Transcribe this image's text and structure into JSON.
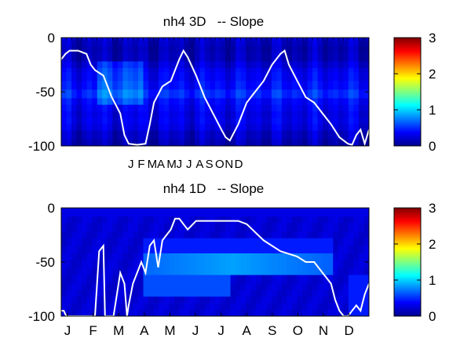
{
  "chart_data": [
    {
      "type": "heatmap",
      "title": "nh4 3D   -- Slope",
      "xlabel": "",
      "ylabel": "",
      "ylim": [
        -100,
        0
      ],
      "yticks": [
        0,
        -50,
        -100
      ],
      "xtick_labels": [
        "J",
        "F",
        "M",
        "A",
        "M",
        "J",
        "J",
        "A",
        "S",
        "O",
        "N",
        "D"
      ],
      "colorbar": {
        "min": 0,
        "max": 3,
        "ticks": [
          0,
          1,
          2,
          3
        ],
        "colormap": "jet"
      },
      "depth_bands": [
        0,
        -3,
        -8,
        -14,
        -22,
        -28,
        -32,
        -40,
        -48,
        -56,
        -62,
        -68,
        -74,
        -80,
        -86,
        -94,
        -100
      ],
      "band_values": [
        0.25,
        0.18,
        0.15,
        0.17,
        0.25,
        0.32,
        0.35,
        0.4,
        0.5,
        0.38,
        0.34,
        0.3,
        0.32,
        0.28,
        0.2,
        0.15
      ],
      "line_series": {
        "name": "",
        "color": "#ffffff",
        "x_day": [
          0,
          5,
          10,
          20,
          30,
          35,
          40,
          50,
          60,
          70,
          75,
          80,
          90,
          100,
          105,
          110,
          120,
          130,
          140,
          145,
          150,
          160,
          170,
          180,
          190,
          195,
          200,
          210,
          220,
          230,
          240,
          250,
          260,
          265,
          270,
          280,
          290,
          300,
          310,
          320,
          330,
          340,
          345,
          350,
          355,
          360,
          365
        ],
        "y_depth": [
          -20,
          -15,
          -12,
          -12,
          -15,
          -25,
          -30,
          -35,
          -55,
          -70,
          -90,
          -98,
          -99,
          -98,
          -80,
          -60,
          -45,
          -40,
          -20,
          -12,
          -18,
          -35,
          -55,
          -70,
          -85,
          -92,
          -95,
          -80,
          -60,
          -50,
          -40,
          -25,
          -15,
          -12,
          -25,
          -40,
          -55,
          -60,
          -70,
          -80,
          -92,
          -98,
          -99,
          -90,
          -85,
          -98,
          -85
        ]
      }
    },
    {
      "type": "heatmap",
      "title": "nh4 1D   -- Slope",
      "xlabel": "",
      "ylabel": "",
      "ylim": [
        -100,
        0
      ],
      "yticks": [
        0,
        -50,
        -100
      ],
      "xtick_labels": [
        "J",
        "F",
        "M",
        "A",
        "M",
        "J",
        "J",
        "A",
        "S",
        "O",
        "N",
        "D"
      ],
      "colorbar": {
        "min": 0,
        "max": 3,
        "ticks": [
          0,
          1,
          2,
          3
        ],
        "colormap": "jet"
      },
      "line_series": {
        "name": "",
        "color": "#ffffff",
        "x_day": [
          0,
          3,
          6,
          10,
          20,
          30,
          40,
          45,
          50,
          52,
          55,
          58,
          62,
          70,
          75,
          78,
          80,
          85,
          90,
          95,
          100,
          105,
          110,
          115,
          120,
          125,
          130,
          135,
          140,
          145,
          150,
          160,
          170,
          180,
          190,
          200,
          210,
          220,
          240,
          260,
          280,
          290,
          300,
          310,
          320,
          325,
          330,
          335,
          340,
          345,
          350,
          355,
          360,
          365
        ],
        "y_depth": [
          -95,
          -95,
          -100,
          -100,
          -100,
          -100,
          -100,
          -40,
          -35,
          -100,
          -100,
          -100,
          -100,
          -60,
          -70,
          -100,
          -90,
          -70,
          -60,
          -50,
          -60,
          -35,
          -30,
          -55,
          -30,
          -25,
          -20,
          -10,
          -10,
          -15,
          -20,
          -12,
          -12,
          -12,
          -12,
          -12,
          -12,
          -15,
          -30,
          -40,
          -45,
          -50,
          -50,
          -60,
          -70,
          -85,
          -95,
          -100,
          -100,
          -95,
          -90,
          -95,
          -80,
          -70
        ]
      }
    }
  ]
}
